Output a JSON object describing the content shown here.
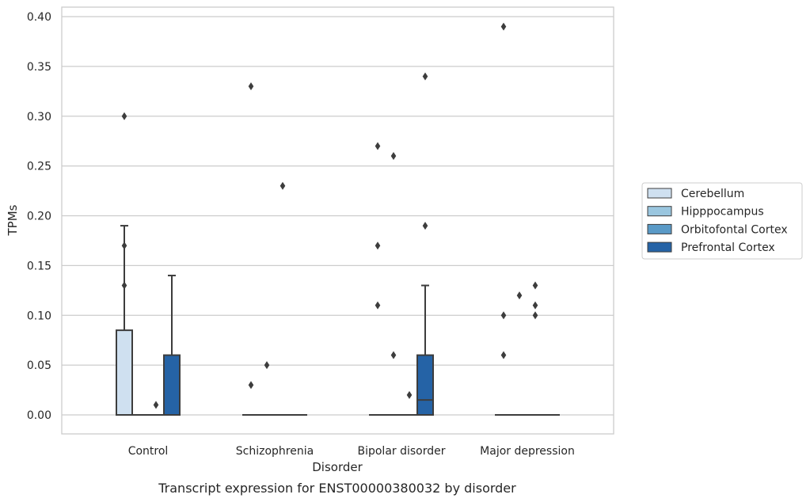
{
  "chart_data": {
    "type": "box",
    "xlabel": "Disorder",
    "ylabel": "TPMs",
    "caption": "Transcript expression for ENST00000380032 by disorder",
    "ylim": [
      -0.018,
      0.41
    ],
    "yticks": [
      "0.00",
      "0.05",
      "0.10",
      "0.15",
      "0.20",
      "0.25",
      "0.30",
      "0.35",
      "0.40"
    ],
    "grid": "horizontal",
    "legend_position": "right",
    "categories": [
      "Control",
      "Schizophrenia",
      "Bipolar disorder",
      "Major depression"
    ],
    "series": [
      {
        "name": "Cerebellum",
        "color": "#cfe0f0"
      },
      {
        "name": "Hipppocampus",
        "color": "#9ac6df"
      },
      {
        "name": "Orbitofontal Cortex",
        "color": "#5a9ac7"
      },
      {
        "name": "Prefrontal Cortex",
        "color": "#2563a6"
      }
    ],
    "boxes": [
      {
        "category": "Control",
        "series": "Cerebellum",
        "q1": 0.0,
        "median": 0.0,
        "q3": 0.085,
        "whisker_low": 0.0,
        "whisker_high": 0.19,
        "outliers": [
          0.3,
          0.17,
          0.13
        ]
      },
      {
        "category": "Control",
        "series": "Hipppocampus",
        "q1": 0.0,
        "median": 0.0,
        "q3": 0.0,
        "whisker_low": 0.0,
        "whisker_high": 0.0,
        "outliers": []
      },
      {
        "category": "Control",
        "series": "Orbitofontal Cortex",
        "q1": 0.0,
        "median": 0.0,
        "q3": 0.0,
        "whisker_low": 0.0,
        "whisker_high": 0.0,
        "outliers": [
          0.01
        ]
      },
      {
        "category": "Control",
        "series": "Prefrontal Cortex",
        "q1": 0.0,
        "median": 0.0,
        "q3": 0.06,
        "whisker_low": 0.0,
        "whisker_high": 0.14,
        "outliers": []
      },
      {
        "category": "Schizophrenia",
        "series": "Cerebellum",
        "q1": 0.0,
        "median": 0.0,
        "q3": 0.0,
        "whisker_low": 0.0,
        "whisker_high": 0.0,
        "outliers": [
          0.33,
          0.03
        ]
      },
      {
        "category": "Schizophrenia",
        "series": "Hipppocampus",
        "q1": 0.0,
        "median": 0.0,
        "q3": 0.0,
        "whisker_low": 0.0,
        "whisker_high": 0.0,
        "outliers": [
          0.05
        ]
      },
      {
        "category": "Schizophrenia",
        "series": "Orbitofontal Cortex",
        "q1": 0.0,
        "median": 0.0,
        "q3": 0.0,
        "whisker_low": 0.0,
        "whisker_high": 0.0,
        "outliers": [
          0.23
        ]
      },
      {
        "category": "Schizophrenia",
        "series": "Prefrontal Cortex",
        "q1": 0.0,
        "median": 0.0,
        "q3": 0.0,
        "whisker_low": 0.0,
        "whisker_high": 0.0,
        "outliers": []
      },
      {
        "category": "Bipolar disorder",
        "series": "Cerebellum",
        "q1": 0.0,
        "median": 0.0,
        "q3": 0.0,
        "whisker_low": 0.0,
        "whisker_high": 0.0,
        "outliers": [
          0.27,
          0.17,
          0.11
        ]
      },
      {
        "category": "Bipolar disorder",
        "series": "Hipppocampus",
        "q1": 0.0,
        "median": 0.0,
        "q3": 0.0,
        "whisker_low": 0.0,
        "whisker_high": 0.0,
        "outliers": [
          0.26,
          0.06
        ]
      },
      {
        "category": "Bipolar disorder",
        "series": "Orbitofontal Cortex",
        "q1": 0.0,
        "median": 0.0,
        "q3": 0.0,
        "whisker_low": 0.0,
        "whisker_high": 0.0,
        "outliers": [
          0.02
        ]
      },
      {
        "category": "Bipolar disorder",
        "series": "Prefrontal Cortex",
        "q1": 0.0,
        "median": 0.015,
        "q3": 0.06,
        "whisker_low": 0.0,
        "whisker_high": 0.13,
        "outliers": [
          0.34,
          0.19
        ]
      },
      {
        "category": "Major depression",
        "series": "Cerebellum",
        "q1": 0.0,
        "median": 0.0,
        "q3": 0.0,
        "whisker_low": 0.0,
        "whisker_high": 0.0,
        "outliers": [
          0.39,
          0.1,
          0.06
        ]
      },
      {
        "category": "Major depression",
        "series": "Hipppocampus",
        "q1": 0.0,
        "median": 0.0,
        "q3": 0.0,
        "whisker_low": 0.0,
        "whisker_high": 0.0,
        "outliers": [
          0.12
        ]
      },
      {
        "category": "Major depression",
        "series": "Orbitofontal Cortex",
        "q1": 0.0,
        "median": 0.0,
        "q3": 0.0,
        "whisker_low": 0.0,
        "whisker_high": 0.0,
        "outliers": [
          0.13,
          0.11,
          0.1
        ]
      },
      {
        "category": "Major depression",
        "series": "Prefrontal Cortex",
        "q1": 0.0,
        "median": 0.0,
        "q3": 0.0,
        "whisker_low": 0.0,
        "whisker_high": 0.0,
        "outliers": []
      }
    ]
  }
}
